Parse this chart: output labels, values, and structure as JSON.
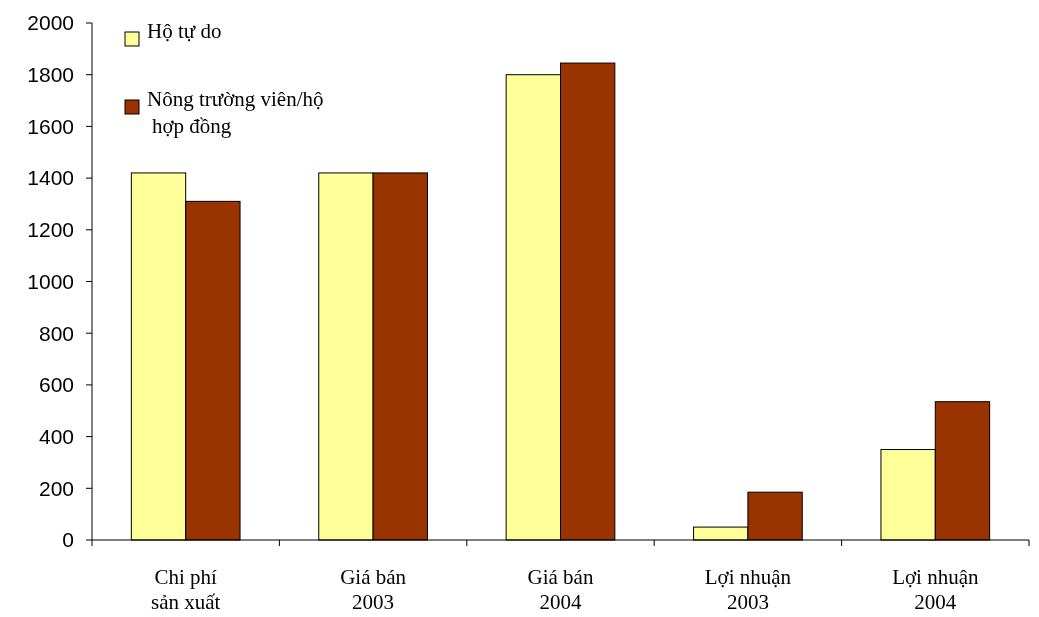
{
  "chart_data": {
    "type": "bar",
    "categories": [
      "Chi phí sản xuất",
      "Giá bán 2003",
      "Giá bán 2004",
      "Lợi nhuận 2003",
      "Lợi nhuận 2004"
    ],
    "series": [
      {
        "name": "Hộ tự do",
        "color": "#ffff99",
        "values": [
          1420,
          1420,
          1800,
          50,
          350
        ]
      },
      {
        "name": "Nông trường viên/hộ hợp đồng",
        "color": "#993300",
        "values": [
          1310,
          1420,
          1845,
          185,
          535
        ]
      }
    ],
    "ylim": [
      0,
      2000
    ],
    "yticks": [
      0,
      200,
      400,
      600,
      800,
      1000,
      1200,
      1400,
      1600,
      1800,
      2000
    ],
    "grid": false,
    "legend": "top left"
  }
}
